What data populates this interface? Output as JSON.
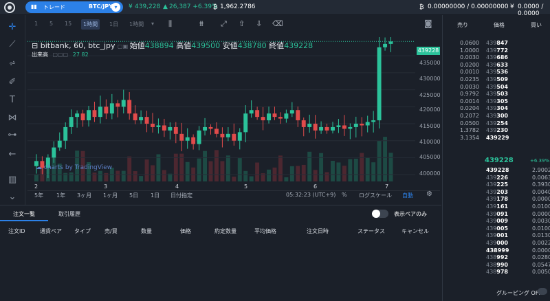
{
  "topbar": {
    "trade_label": "トレード",
    "pair": "BTC/JPY",
    "price_symbol": "¥",
    "price": "439,228",
    "change": "26,387 +6.39%",
    "volume_symbol": "₿",
    "volume": "1,962.2786",
    "btc_balance": "0.00000000 / 0.00000000",
    "jpy_balance": "0.0000 / 0.0000"
  },
  "toolbar": {
    "intervals": [
      "1",
      "5",
      "15",
      "1時間",
      "1日",
      "1時間"
    ]
  },
  "chart": {
    "symbol": "bitbank, 60, btc_jpy",
    "open_label": "始値",
    "open": "438894",
    "high_label": "高値",
    "high": "439500",
    "low_label": "安値",
    "low": "438780",
    "close_label": "終値",
    "close": "439228",
    "volume_label": "出来高",
    "volume_values": "27  82",
    "watermark": "charts by TradingView",
    "last_price_tag": "439228"
  },
  "chart_data": {
    "type": "candlestick",
    "y_ticks": [
      "435000",
      "430000",
      "425000",
      "420000",
      "415000",
      "410000",
      "405000",
      "400000"
    ],
    "x_ticks": [
      "2",
      "3",
      "4",
      "5",
      "6",
      "7"
    ],
    "ylim": [
      398000,
      440500
    ]
  },
  "rangebar": {
    "ranges": [
      "5年",
      "1年",
      "3ヶ月",
      "1ヶ月",
      "5日",
      "1日",
      "日付指定"
    ],
    "time": "05:32:23 (UTC+9)",
    "percent": "%",
    "log": "ログスケール",
    "auto": "自動"
  },
  "orders": {
    "tab_open": "注文一覧",
    "tab_history": "取引履歴",
    "toggle_label": "表示ペアのみ",
    "columns": [
      "注文ID",
      "通貨ペア",
      "タイプ",
      "売/買",
      "数量",
      "価格",
      "約定数量",
      "平均価格",
      "注文日時",
      "ステータス",
      "キャンセル"
    ]
  },
  "book": {
    "col_sell": "売り",
    "col_price": "価格",
    "col_buy": "買い",
    "asks": [
      {
        "q": "0.0600",
        "pp": "439",
        "pb": "847"
      },
      {
        "q": "1.0000",
        "pp": "439",
        "pb": "772"
      },
      {
        "q": "0.0030",
        "pp": "439",
        "pb": "686"
      },
      {
        "q": "0.0200",
        "pp": "439",
        "pb": "633"
      },
      {
        "q": "0.0010",
        "pp": "439",
        "pb": "536"
      },
      {
        "q": "0.0235",
        "pp": "439",
        "pb": "509"
      },
      {
        "q": "0.0030",
        "pp": "439",
        "pb": "504"
      },
      {
        "q": "0.9792",
        "pp": "439",
        "pb": "503"
      },
      {
        "q": "0.0014",
        "pp": "439",
        "pb": "305"
      },
      {
        "q": "0.0204",
        "pp": "439",
        "pb": "304"
      },
      {
        "q": "0.2072",
        "pp": "439",
        "pb": "300"
      },
      {
        "q": "0.0500",
        "pp": "439",
        "pb": "254"
      },
      {
        "q": "1.3782",
        "pp": "439",
        "pb": "230"
      },
      {
        "q": "3.1354",
        "pp": "",
        "pb": "439229"
      }
    ],
    "mid_price": "439228",
    "mid_change": "+6.39%",
    "bids": [
      {
        "pp": "",
        "pb": "439228",
        "q": "2.9002"
      },
      {
        "pp": "439",
        "pb": "226",
        "q": "0.0063"
      },
      {
        "q": "0.3930",
        "pp": "439",
        "pb": "225"
      },
      {
        "q": "0.0040",
        "pp": "439",
        "pb": "203"
      },
      {
        "q": "0.0000",
        "pp": "439",
        "pb": "178"
      },
      {
        "q": "0.0100",
        "pp": "439",
        "pb": "161"
      },
      {
        "q": "0.0000",
        "pp": "439",
        "pb": "091"
      },
      {
        "q": "0.0030",
        "pp": "439",
        "pb": "009"
      },
      {
        "q": "0.0100",
        "pp": "439",
        "pb": "005"
      },
      {
        "q": "0.0130",
        "pp": "439",
        "pb": "001"
      },
      {
        "q": "0.0022",
        "pp": "439",
        "pb": "000"
      },
      {
        "q": "0.0000",
        "pp": "",
        "pb": "438999"
      },
      {
        "q": "0.0280",
        "pp": "438",
        "pb": "992"
      },
      {
        "q": "0.0547",
        "pp": "438",
        "pb": "990"
      },
      {
        "q": "0.0050",
        "pp": "438",
        "pb": "978"
      }
    ],
    "grouping_label": "グルーピング OFF"
  },
  "colors": {
    "up": "#2bc29a",
    "down": "#e04b4b",
    "accent": "#2c81e8"
  }
}
